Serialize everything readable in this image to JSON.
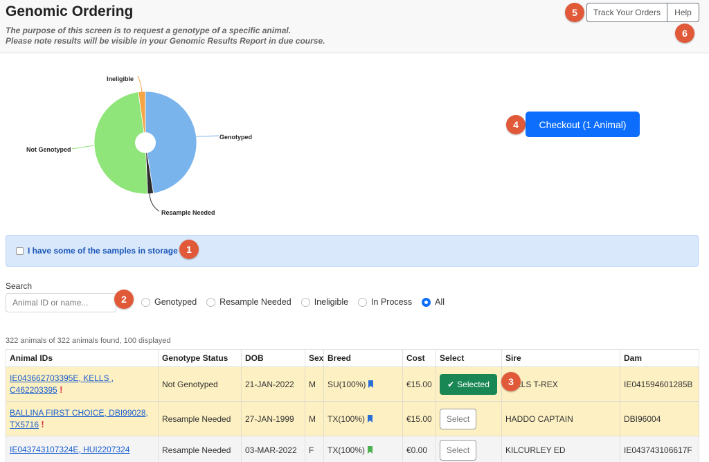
{
  "header": {
    "title": "Genomic Ordering",
    "subtitle_line1": "The purpose of this screen is to request a genotype of a specific animal.",
    "subtitle_line2": "Please note results will be visible in your Genomic Results Report in due course.",
    "track_orders_label": "Track Your Orders",
    "help_label": "Help"
  },
  "markers": [
    "1",
    "2",
    "3",
    "4",
    "5",
    "6"
  ],
  "chart_data": {
    "type": "pie",
    "categories": [
      "Genotyped",
      "Resample Needed",
      "Not Genotyped",
      "Ineligible"
    ],
    "values": [
      47.5,
      1.8,
      48.5,
      2.2
    ],
    "colors": [
      "#7ab4ec",
      "#2e2e2e",
      "#8fe57a",
      "#f5a545"
    ],
    "donut_hole": true
  },
  "checkout_label": "Checkout (1 Animal)",
  "storage_label": "I have some of the samples in storage",
  "search": {
    "label": "Search",
    "placeholder": "Animal ID or name...",
    "filters": [
      "Genotyped",
      "Resample Needed",
      "Ineligible",
      "In Process",
      "All"
    ],
    "selected_filter": "All"
  },
  "count_text": "322 animals of 322 animals found, 100 displayed",
  "table": {
    "columns": [
      "Animal IDs",
      "Genotype Status",
      "DOB",
      "Sex",
      "Breed",
      "Cost",
      "Select",
      "Sire",
      "Dam"
    ],
    "rows": [
      {
        "id_line1": "IE043662703395E, KELLS ,",
        "id_line2": "C462203395",
        "warning": "!",
        "status": "Not Genotyped",
        "dob": "21-JAN-2022",
        "sex": "M",
        "breed": "SU(100%)",
        "breed_flag_color": "#2b6fd6",
        "cost": "€15.00",
        "select_label": "Selected",
        "selected": true,
        "sire": "KELLS T-REX",
        "dam": "IE041594601285B"
      },
      {
        "id_line1": "BALLINA FIRST CHOICE, DBI99028,",
        "id_line2": "TX5716",
        "warning": "!",
        "status": "Resample Needed",
        "dob": "27-JAN-1999",
        "sex": "M",
        "breed": "TX(100%)",
        "breed_flag_color": "#2b6fd6",
        "cost": "€15.00",
        "select_label": "Select",
        "selected": false,
        "sire": "HADDO CAPTAIN",
        "dam": "DBI96004"
      },
      {
        "id_line1": "IE043743107324E, HUI2207324",
        "id_line2": "",
        "warning": "",
        "status": "Resample Needed",
        "dob": "03-MAR-2022",
        "sex": "F",
        "breed": "TX(100%)",
        "breed_flag_color": "#4caf50",
        "cost": "€0.00",
        "select_label": "Select",
        "selected": false,
        "sire": "KILCURLEY ED",
        "dam": "IE043743106617F"
      }
    ]
  }
}
